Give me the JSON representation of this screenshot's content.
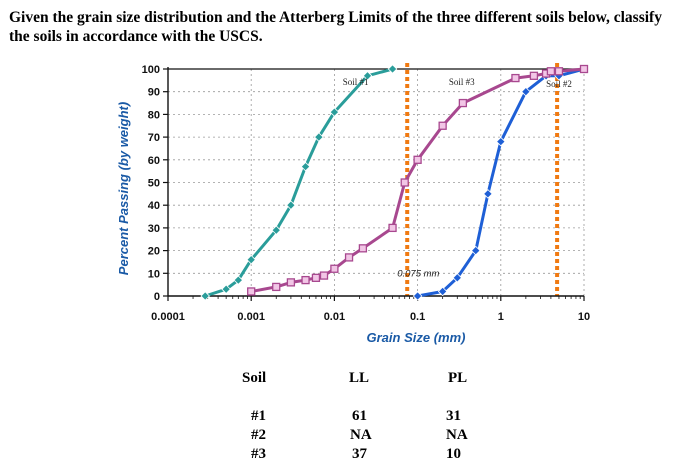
{
  "question": "Given the grain size distribution and the Atterberg Limits of the three different soils below, classify the soils in accordance with the USCS.",
  "chart_data": {
    "type": "line",
    "xlabel": "Grain Size (mm)",
    "ylabel": "Percent Passing (by weight)",
    "xscale": "log",
    "xlim": [
      0.0001,
      10
    ],
    "ylim": [
      0,
      100
    ],
    "x_ticks": [
      "0.0001",
      "0.001",
      "0.01",
      "0.1",
      "1",
      "10"
    ],
    "y_ticks": [
      "0",
      "10",
      "20",
      "30",
      "40",
      "50",
      "60",
      "70",
      "80",
      "90",
      "100"
    ],
    "grid": true,
    "annotation": "0.075 mm",
    "reference_lines": [
      0.075,
      4.75
    ],
    "series": [
      {
        "name": "Soil #1",
        "color": "#2a9d9a",
        "marker": "diamond",
        "x": [
          0.00028,
          0.0005,
          0.0007,
          0.001,
          0.002,
          0.003,
          0.0045,
          0.0065,
          0.01,
          0.025,
          0.05
        ],
        "y": [
          0,
          3,
          7,
          16,
          29,
          40,
          57,
          70,
          81,
          97,
          100
        ]
      },
      {
        "name": "Soil #2",
        "color": "#1e5fd6",
        "marker": "diamond",
        "x": [
          0.1,
          0.2,
          0.3,
          0.5,
          0.7,
          1.0,
          2.0,
          3.5,
          5.0,
          10.0
        ],
        "y": [
          0,
          2,
          8,
          20,
          45,
          68,
          90,
          97,
          97,
          100
        ]
      },
      {
        "name": "Soil #3",
        "color": "#a8488f",
        "marker": "square",
        "x": [
          0.001,
          0.002,
          0.003,
          0.0045,
          0.006,
          0.0075,
          0.01,
          0.015,
          0.022,
          0.05,
          0.07,
          0.1,
          0.2,
          0.35,
          1.5,
          2.5,
          3.5,
          4.0,
          5.0,
          10.0
        ],
        "y": [
          2,
          4,
          6,
          7,
          8,
          9,
          12,
          17,
          21,
          30,
          50,
          60,
          75,
          85,
          96,
          97,
          98,
          99,
          99,
          100
        ]
      }
    ]
  },
  "table": {
    "headers": [
      "Soil",
      "LL",
      "PL"
    ],
    "rows": [
      [
        "#1",
        "61",
        "31"
      ],
      [
        "#2",
        "NA",
        "NA"
      ],
      [
        "#3",
        "37",
        "10"
      ]
    ]
  }
}
